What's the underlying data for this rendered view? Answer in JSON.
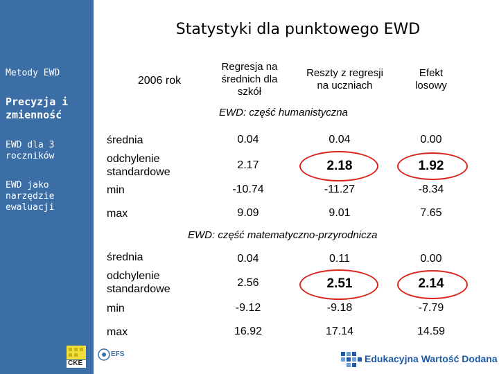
{
  "title": "Statystyki dla punktowego EWD",
  "sidebar": {
    "items": [
      {
        "label": "Metody EWD"
      },
      {
        "label1": "Precyzja i",
        "label2": "zmienność"
      },
      {
        "label1": "EWD dla 3",
        "label2": "roczników"
      },
      {
        "label1": "EWD jako",
        "label2": "narzędzie",
        "label3": "ewaluacji"
      }
    ]
  },
  "table": {
    "year": "2006 rok",
    "headers": {
      "c1": [
        "Regresja na",
        "średnich dla",
        "szkół"
      ],
      "c2": [
        "Reszty z regresji",
        "na uczniach"
      ],
      "c3": [
        "Efekt",
        "losowy"
      ]
    },
    "sections": [
      {
        "title": "EWD: część humanistyczna",
        "rows": [
          {
            "label1": "średnia",
            "label2": "",
            "v": [
              "0.04",
              "0.04",
              "0.00"
            ]
          },
          {
            "label1": "odchylenie",
            "label2": "standardowe",
            "v": [
              "2.17",
              "2.18",
              "1.92"
            ]
          },
          {
            "label1": "min",
            "label2": "",
            "v": [
              "-10.74",
              "-11.27",
              "-8.34"
            ]
          },
          {
            "label1": "max",
            "label2": "",
            "v": [
              "9.09",
              "9.01",
              "7.65"
            ]
          }
        ]
      },
      {
        "title": "EWD: część matematyczno-przyrodnicza",
        "rows": [
          {
            "label1": "średnia",
            "label2": "",
            "v": [
              "0.04",
              "0.11",
              "0.00"
            ]
          },
          {
            "label1": "odchylenie",
            "label2": "standardowe",
            "v": [
              "2.56",
              "2.51",
              "2.14"
            ]
          },
          {
            "label1": "min",
            "label2": "",
            "v": [
              "-9.12",
              "-9.18",
              "-7.79"
            ]
          },
          {
            "label1": "max",
            "label2": "",
            "v": [
              "16.92",
              "17.14",
              "14.59"
            ]
          }
        ]
      }
    ]
  },
  "footer": {
    "logo_left_text": "CKE",
    "logo_mid_text": "EFS",
    "logo_right_text": "Edukacyjna Wartość Dodana"
  }
}
